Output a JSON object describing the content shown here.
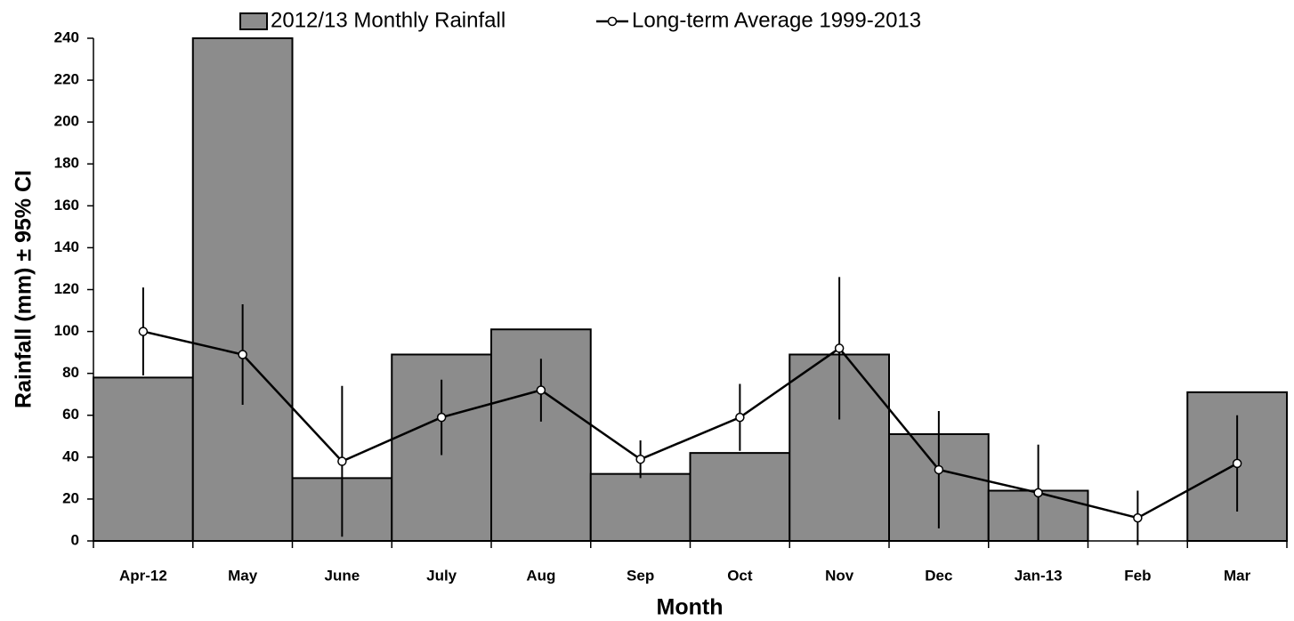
{
  "chart_data": {
    "type": "bar_line",
    "ylabel": "Rainfall (mm) ± 95% CI",
    "xlabel": "Month",
    "categories": [
      "Apr-12",
      "May",
      "June",
      "July",
      "Aug",
      "Sep",
      "Oct",
      "Nov",
      "Dec",
      "Jan-13",
      "Feb",
      "Mar"
    ],
    "series": [
      {
        "name": "2012/13 Monthly Rainfall",
        "kind": "bar",
        "color": "#8c8c8c",
        "values": [
          78,
          240,
          30,
          89,
          101,
          32,
          42,
          89,
          51,
          24,
          0,
          71
        ]
      },
      {
        "name": "Long-term Average 1999-2013",
        "kind": "line",
        "color": "#000000",
        "values": [
          100,
          89,
          38,
          59,
          72,
          39,
          59,
          92,
          34,
          23,
          11,
          37
        ],
        "errors": [
          21,
          24,
          36,
          18,
          15,
          9,
          16,
          34,
          28,
          23,
          13,
          23
        ]
      }
    ],
    "ylim": [
      0,
      240
    ],
    "yticks": [
      0,
      20,
      40,
      60,
      80,
      100,
      120,
      140,
      160,
      180,
      200,
      220,
      240
    ],
    "legend": "top"
  }
}
